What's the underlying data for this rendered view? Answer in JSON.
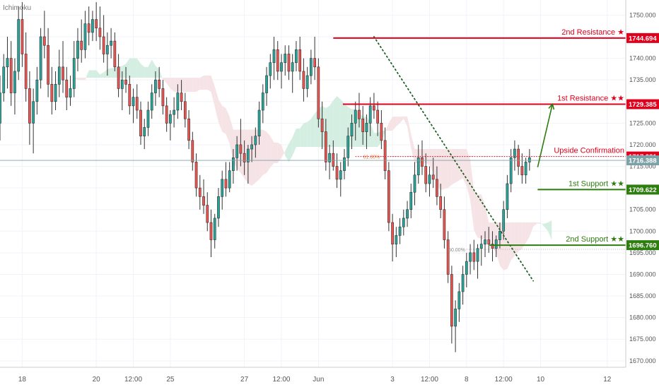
{
  "indicator": "Ichimoku",
  "colors": {
    "background": "#ffffff",
    "grid": "#f0f3fa",
    "candle_up": "#26a69a",
    "candle_down": "#ef5350",
    "wick": "#333333",
    "cloud_bull": "#d4eee2",
    "cloud_bear": "#f6e3e6",
    "resistance": "#e0001b",
    "support": "#2e7d0f",
    "trendline": "#1b5e20",
    "last_price": "#7ca2a8",
    "price_scale_text": "#555555"
  },
  "chart_data": {
    "type": "candlestick",
    "title": "",
    "ylim": [
      1668.5,
      1753.5
    ],
    "y_ticks": [
      "1750.000",
      "1745.000",
      "1740.000",
      "1735.000",
      "1730.000",
      "1725.000",
      "1720.000",
      "1715.000",
      "1710.000",
      "1705.000",
      "1700.000",
      "1695.000",
      "1690.000",
      "1685.000",
      "1680.000",
      "1675.000",
      "1670.000"
    ],
    "x_ticks": [
      {
        "label": "18",
        "t": 3
      },
      {
        "label": "20",
        "t": 13
      },
      {
        "label": "12:00",
        "t": 18
      },
      {
        "label": "25",
        "t": 23
      },
      {
        "label": "27",
        "t": 33
      },
      {
        "label": "12:00",
        "t": 38
      },
      {
        "label": "Jun",
        "t": 43
      },
      {
        "label": "3",
        "t": 53
      },
      {
        "label": "12:00",
        "t": 58
      },
      {
        "label": "8",
        "t": 63
      },
      {
        "label": "12:00",
        "t": 68
      },
      {
        "label": "10",
        "t": 73
      },
      {
        "label": "12",
        "t": 82
      }
    ],
    "t_range": [
      0,
      84.5
    ],
    "price_levels": [
      {
        "name": "2nd Resistance ★",
        "value": 1744.694,
        "label": "1744.694",
        "kind": "resistance",
        "t_start": 45.0
      },
      {
        "name": "1st Resistance ★★",
        "value": 1729.385,
        "label": "1729.385",
        "kind": "resistance",
        "t_start": 46.3
      },
      {
        "name": "Upside Confirmation",
        "value": 1717.281,
        "label": "1717.281",
        "kind": "resistance",
        "dotted": true
      },
      {
        "name": "1st Support ★★",
        "value": 1709.622,
        "label": "1709.622",
        "kind": "support",
        "t_start": 72.6
      },
      {
        "name": "2nd Support ★★",
        "value": 1696.76,
        "label": "1696.760",
        "kind": "support",
        "t_start": 66.1
      }
    ],
    "last_price": {
      "value": 1716.388,
      "label": "1716.388"
    },
    "fib_levels": [
      {
        "label": "61.80%",
        "value": 1717.281,
        "t_start": 51.5
      },
      {
        "label": "50.00%",
        "value": 1695.8,
        "t_start": 63.0
      }
    ],
    "trendline": {
      "t_start": 50.5,
      "y_start": 1745.0,
      "t_end": 72.0,
      "y_end": 1688.5
    },
    "projection_arrow": {
      "t_start": 72.6,
      "y_start": 1714.8,
      "t_end": 74.6,
      "y_end": 1729.4
    },
    "candles": [
      [
        0,
        1725,
        1736,
        1721,
        1732
      ],
      [
        0.5,
        1732,
        1741,
        1730,
        1738
      ],
      [
        1,
        1738,
        1745,
        1733,
        1740
      ],
      [
        1.5,
        1740,
        1744,
        1729,
        1732
      ],
      [
        2,
        1732,
        1740,
        1727,
        1737
      ],
      [
        2.5,
        1737,
        1752,
        1735,
        1749
      ],
      [
        3,
        1749,
        1753,
        1738,
        1741
      ],
      [
        3.5,
        1741,
        1746,
        1730,
        1733
      ],
      [
        4,
        1733,
        1737,
        1720,
        1725
      ],
      [
        4.5,
        1725,
        1733,
        1718,
        1730
      ],
      [
        5,
        1730,
        1738,
        1727,
        1735
      ],
      [
        5.5,
        1735,
        1747,
        1733,
        1745
      ],
      [
        6,
        1745,
        1751,
        1740,
        1743
      ],
      [
        6.5,
        1743,
        1747,
        1731,
        1734
      ],
      [
        7,
        1734,
        1738,
        1727,
        1730
      ],
      [
        7.5,
        1730,
        1737,
        1728,
        1734
      ],
      [
        8,
        1734,
        1742,
        1731,
        1738
      ],
      [
        8.5,
        1738,
        1744,
        1732,
        1735
      ],
      [
        9,
        1735,
        1738,
        1728,
        1731
      ],
      [
        9.5,
        1731,
        1736,
        1729,
        1733
      ],
      [
        10,
        1733,
        1744,
        1731,
        1740
      ],
      [
        10.5,
        1740,
        1747,
        1737,
        1744
      ],
      [
        11,
        1744,
        1749,
        1739,
        1742
      ],
      [
        11.5,
        1742,
        1751,
        1740,
        1748
      ],
      [
        12,
        1748,
        1752,
        1743,
        1746
      ],
      [
        12.5,
        1746,
        1751,
        1744,
        1749
      ],
      [
        13,
        1749,
        1753,
        1744,
        1747
      ],
      [
        13.5,
        1747,
        1752,
        1742,
        1745
      ],
      [
        14,
        1745,
        1750,
        1739,
        1741
      ],
      [
        14.5,
        1741,
        1746,
        1736,
        1743
      ],
      [
        15,
        1743,
        1747,
        1740,
        1744
      ],
      [
        15.5,
        1744,
        1746,
        1737,
        1738
      ],
      [
        16,
        1738,
        1741,
        1731,
        1733
      ],
      [
        16.5,
        1733,
        1737,
        1728,
        1735
      ],
      [
        17,
        1735,
        1738,
        1732,
        1734
      ],
      [
        17.5,
        1734,
        1736,
        1727,
        1729
      ],
      [
        18,
        1729,
        1733,
        1725,
        1731
      ],
      [
        18.5,
        1731,
        1734,
        1726,
        1728
      ],
      [
        19,
        1728,
        1730,
        1720,
        1722
      ],
      [
        19.5,
        1722,
        1726,
        1719,
        1724
      ],
      [
        20,
        1724,
        1730,
        1722,
        1728
      ],
      [
        20.5,
        1728,
        1734,
        1726,
        1732
      ],
      [
        21,
        1732,
        1737,
        1729,
        1735
      ],
      [
        21.5,
        1735,
        1738,
        1731,
        1733
      ],
      [
        22,
        1733,
        1735,
        1727,
        1729
      ],
      [
        22.5,
        1729,
        1731,
        1723,
        1725
      ],
      [
        23,
        1725,
        1728,
        1721,
        1727
      ],
      [
        23.5,
        1727,
        1731,
        1724,
        1728
      ],
      [
        24,
        1728,
        1734,
        1726,
        1732
      ],
      [
        24.5,
        1732,
        1735,
        1728,
        1730
      ],
      [
        25,
        1730,
        1732,
        1724,
        1726
      ],
      [
        25.5,
        1726,
        1728,
        1719,
        1721
      ],
      [
        26,
        1721,
        1723,
        1714,
        1716
      ],
      [
        26.5,
        1716,
        1718,
        1708,
        1710
      ],
      [
        27,
        1710,
        1713,
        1705,
        1708
      ],
      [
        27.5,
        1708,
        1712,
        1704,
        1706
      ],
      [
        28,
        1706,
        1709,
        1700,
        1702
      ],
      [
        28.5,
        1702,
        1705,
        1694,
        1698
      ],
      [
        29,
        1698,
        1704,
        1696,
        1703
      ],
      [
        29.5,
        1703,
        1710,
        1701,
        1708
      ],
      [
        30,
        1708,
        1714,
        1705,
        1712
      ],
      [
        30.5,
        1712,
        1716,
        1708,
        1710
      ],
      [
        31,
        1710,
        1716,
        1709,
        1714
      ],
      [
        31.5,
        1714,
        1719,
        1711,
        1717
      ],
      [
        32,
        1717,
        1722,
        1714,
        1720
      ],
      [
        32.5,
        1720,
        1726,
        1715,
        1718
      ],
      [
        33,
        1718,
        1721,
        1713,
        1716
      ],
      [
        33.5,
        1716,
        1720,
        1711,
        1719
      ],
      [
        34,
        1719,
        1722,
        1716,
        1720
      ],
      [
        34.5,
        1720,
        1724,
        1717,
        1722
      ],
      [
        35,
        1722,
        1730,
        1720,
        1728
      ],
      [
        35.5,
        1728,
        1734,
        1725,
        1732
      ],
      [
        36,
        1732,
        1738,
        1729,
        1736
      ],
      [
        36.5,
        1736,
        1741,
        1733,
        1739
      ],
      [
        37,
        1739,
        1745,
        1735,
        1742
      ],
      [
        37.5,
        1742,
        1744,
        1735,
        1737
      ],
      [
        38,
        1737,
        1741,
        1733,
        1739
      ],
      [
        38.5,
        1739,
        1743,
        1736,
        1741
      ],
      [
        39,
        1741,
        1743,
        1735,
        1737
      ],
      [
        39.5,
        1737,
        1741,
        1732,
        1739
      ],
      [
        40,
        1739,
        1744,
        1737,
        1742
      ],
      [
        40.5,
        1742,
        1745,
        1735,
        1737
      ],
      [
        41,
        1737,
        1740,
        1730,
        1733
      ],
      [
        41.5,
        1733,
        1738,
        1731,
        1736
      ],
      [
        42,
        1736,
        1742,
        1734,
        1740
      ],
      [
        42.5,
        1740,
        1745,
        1735,
        1738
      ],
      [
        43,
        1738,
        1740,
        1724,
        1726
      ],
      [
        43.5,
        1726,
        1730,
        1719,
        1723
      ],
      [
        44,
        1723,
        1726,
        1714,
        1716
      ],
      [
        44.5,
        1716,
        1720,
        1712,
        1718
      ],
      [
        45,
        1718,
        1721,
        1714,
        1715
      ],
      [
        45.5,
        1715,
        1718,
        1710,
        1712
      ],
      [
        46,
        1712,
        1716,
        1708,
        1714
      ],
      [
        46.5,
        1714,
        1719,
        1712,
        1717
      ],
      [
        47,
        1717,
        1724,
        1715,
        1722
      ],
      [
        47.5,
        1722,
        1727,
        1719,
        1725
      ],
      [
        48,
        1725,
        1730,
        1721,
        1728
      ],
      [
        48.5,
        1728,
        1732,
        1724,
        1726
      ],
      [
        49,
        1726,
        1729,
        1720,
        1723
      ],
      [
        49.5,
        1723,
        1727,
        1719,
        1725
      ],
      [
        50,
        1725,
        1731,
        1722,
        1729
      ],
      [
        50.5,
        1729,
        1732,
        1726,
        1728
      ],
      [
        51,
        1728,
        1730,
        1722,
        1725
      ],
      [
        51.5,
        1725,
        1728,
        1719,
        1721
      ],
      [
        52,
        1721,
        1724,
        1712,
        1714
      ],
      [
        52.5,
        1714,
        1716,
        1700,
        1702
      ],
      [
        53,
        1702,
        1704,
        1693,
        1697
      ],
      [
        53.5,
        1697,
        1701,
        1694,
        1699
      ],
      [
        54,
        1699,
        1703,
        1697,
        1701
      ],
      [
        54.5,
        1701,
        1705,
        1699,
        1703
      ],
      [
        55,
        1703,
        1707,
        1701,
        1705
      ],
      [
        55.5,
        1705,
        1711,
        1703,
        1709
      ],
      [
        56,
        1709,
        1716,
        1706,
        1713
      ],
      [
        56.5,
        1713,
        1720,
        1711,
        1717
      ],
      [
        57,
        1717,
        1721,
        1713,
        1715
      ],
      [
        57.5,
        1715,
        1718,
        1709,
        1711
      ],
      [
        58,
        1711,
        1715,
        1708,
        1713
      ],
      [
        58.5,
        1713,
        1717,
        1710,
        1712
      ],
      [
        59,
        1712,
        1715,
        1706,
        1708
      ],
      [
        59.5,
        1708,
        1711,
        1703,
        1705
      ],
      [
        60,
        1705,
        1708,
        1696,
        1698
      ],
      [
        60.5,
        1698,
        1700,
        1688,
        1690
      ],
      [
        61,
        1690,
        1692,
        1674,
        1678
      ],
      [
        61.5,
        1678,
        1684,
        1672,
        1682
      ],
      [
        62,
        1682,
        1688,
        1679,
        1686
      ],
      [
        62.5,
        1686,
        1692,
        1683,
        1690
      ],
      [
        63,
        1690,
        1695,
        1687,
        1693
      ],
      [
        63.5,
        1693,
        1697,
        1690,
        1695
      ],
      [
        64,
        1695,
        1698,
        1691,
        1693
      ],
      [
        64.5,
        1693,
        1697,
        1689,
        1696
      ],
      [
        65,
        1696,
        1699,
        1692,
        1697
      ],
      [
        65.5,
        1697,
        1700,
        1694,
        1698
      ],
      [
        66,
        1698,
        1701,
        1695,
        1697
      ],
      [
        66.5,
        1697,
        1700,
        1693,
        1696
      ],
      [
        67,
        1696,
        1699,
        1694,
        1698
      ],
      [
        67.5,
        1698,
        1702,
        1696,
        1700
      ],
      [
        68,
        1700,
        1707,
        1698,
        1705
      ],
      [
        68.5,
        1705,
        1713,
        1703,
        1711
      ],
      [
        69,
        1711,
        1719,
        1709,
        1717
      ],
      [
        69.5,
        1717,
        1721,
        1714,
        1719
      ],
      [
        70,
        1719,
        1720,
        1713,
        1715
      ],
      [
        70.5,
        1715,
        1718,
        1711,
        1713
      ],
      [
        71,
        1713,
        1717,
        1711,
        1716
      ],
      [
        71.5,
        1716,
        1719,
        1714,
        1717
      ]
    ]
  }
}
